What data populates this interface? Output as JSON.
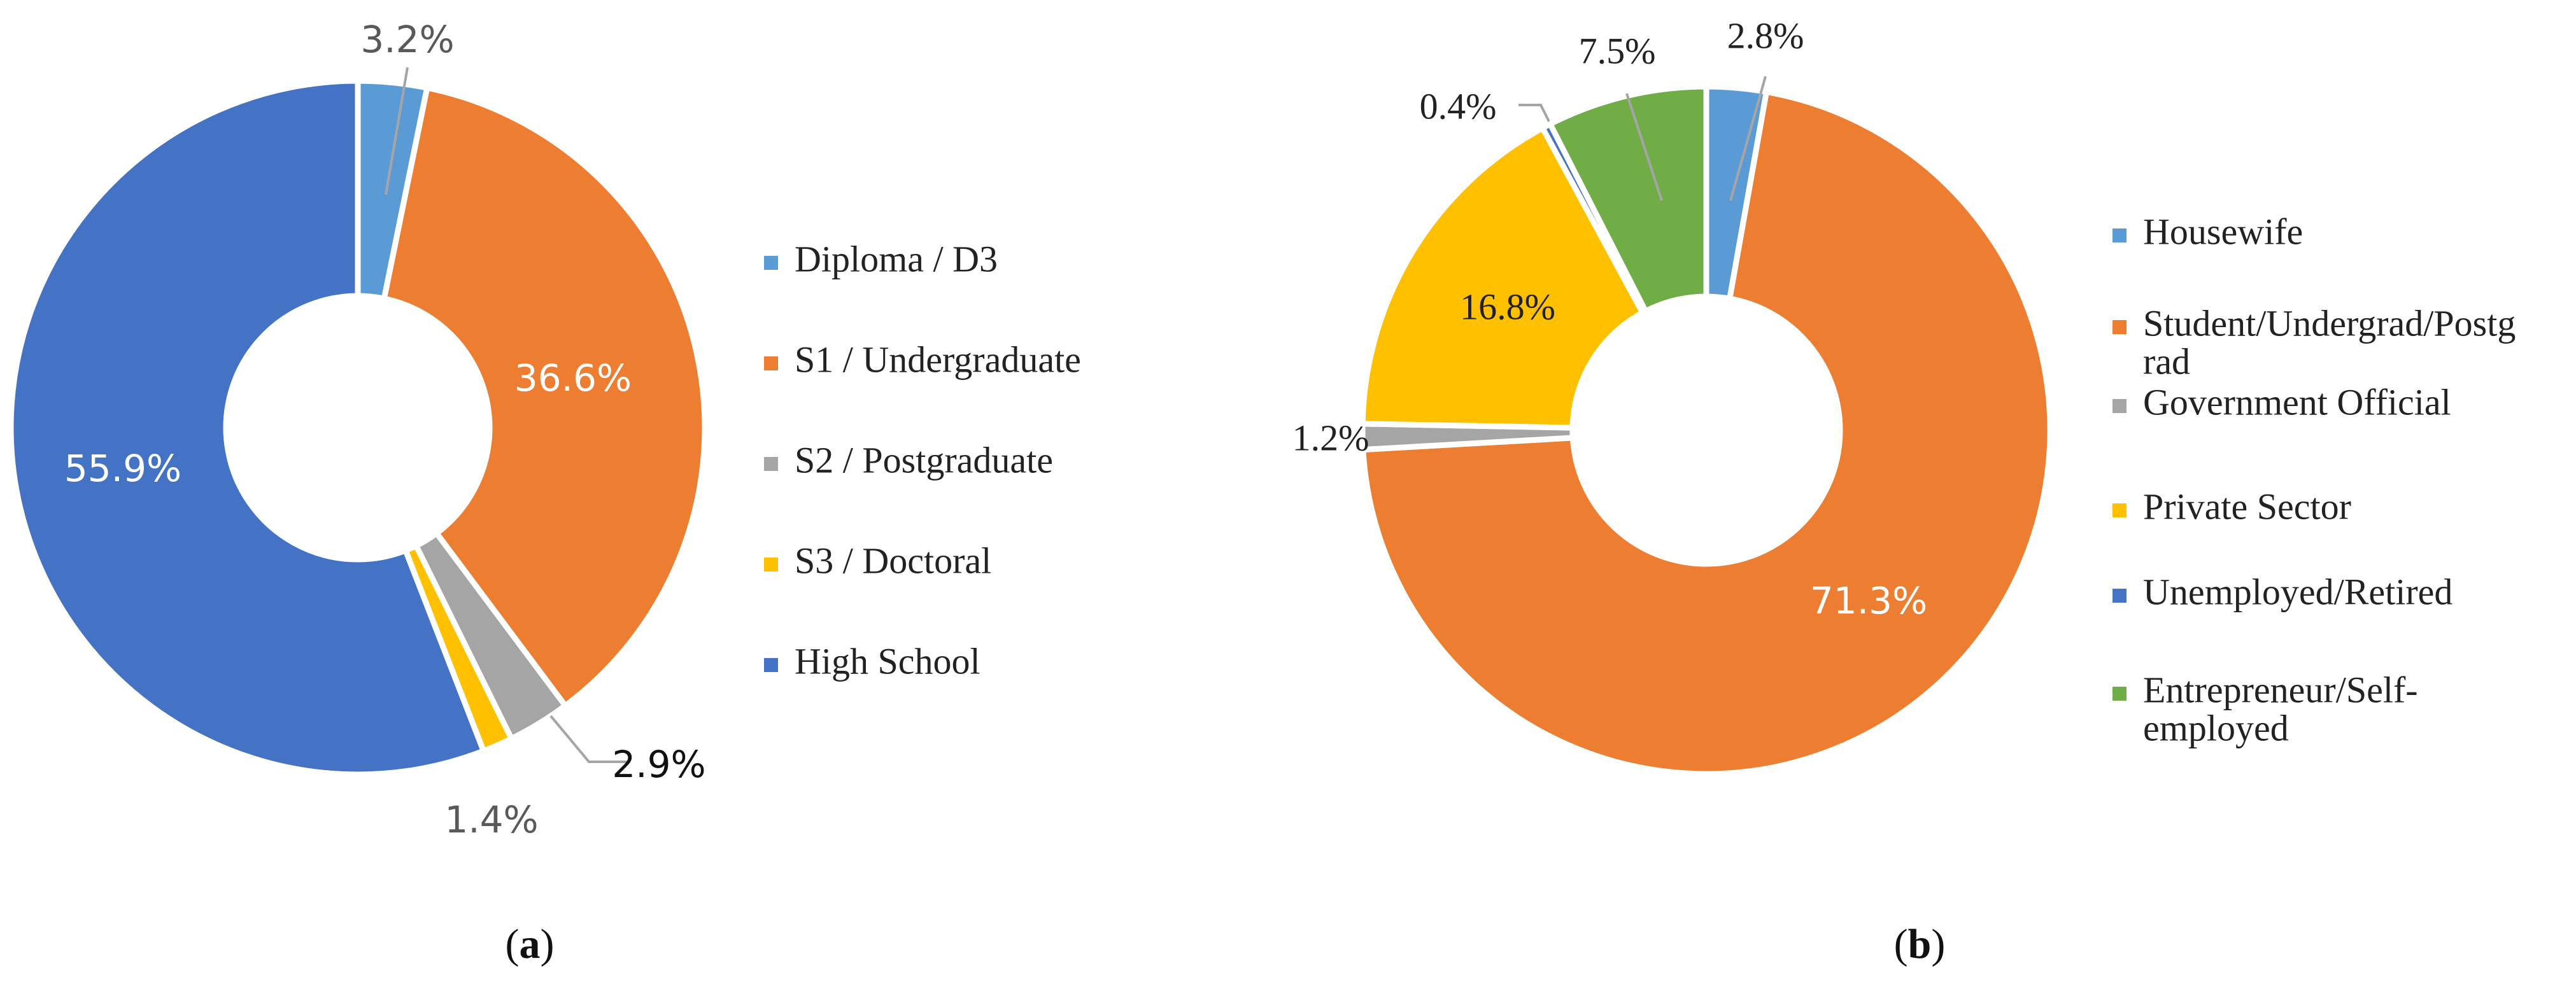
{
  "chart_data": [
    {
      "type": "pie",
      "caption": "(a)",
      "categories": [
        "Diploma / D3",
        "S1 / Undergraduate",
        "S2 / Postgraduate",
        "S3 / Doctoral",
        "High School"
      ],
      "values": [
        3.2,
        36.6,
        2.9,
        1.4,
        55.9
      ],
      "labels": [
        "3.2%",
        "36.6%",
        "2.9%",
        "1.4%",
        "55.9%"
      ],
      "colors": [
        "#5B9BD5",
        "#ED7D31",
        "#A5A5A5",
        "#FFC000",
        "#4472C4"
      ],
      "legend": [
        "Diploma / D3",
        "S1 / Undergraduate",
        "S2 / Postgraduate",
        "S3 / Doctoral",
        "High School"
      ],
      "legend_position": "right",
      "donut": true
    },
    {
      "type": "pie",
      "caption": "(b)",
      "categories": [
        "Housewife",
        "Student/Undergrad/Postgrad",
        "Government Official",
        "Private Sector",
        "Unemployed/Retired",
        "Entrepreneur/Self-employed"
      ],
      "values": [
        2.8,
        71.3,
        1.2,
        16.8,
        0.4,
        7.5
      ],
      "labels": [
        "2.8%",
        "71.3%",
        "1.2%",
        "16.8%",
        "0.4%",
        "7.5%"
      ],
      "colors": [
        "#5B9BD5",
        "#ED7D31",
        "#A5A5A5",
        "#FFC000",
        "#4472C4",
        "#70AD47"
      ],
      "legend": [
        [
          "Housewife"
        ],
        [
          "Student/Undergrad/Postg",
          "rad"
        ],
        [
          "Government Official"
        ],
        [
          "Private Sector"
        ],
        [
          "Unemployed/Retired"
        ],
        [
          "Entrepreneur/Self-",
          "employed"
        ]
      ],
      "legend_position": "right",
      "donut": true
    }
  ]
}
